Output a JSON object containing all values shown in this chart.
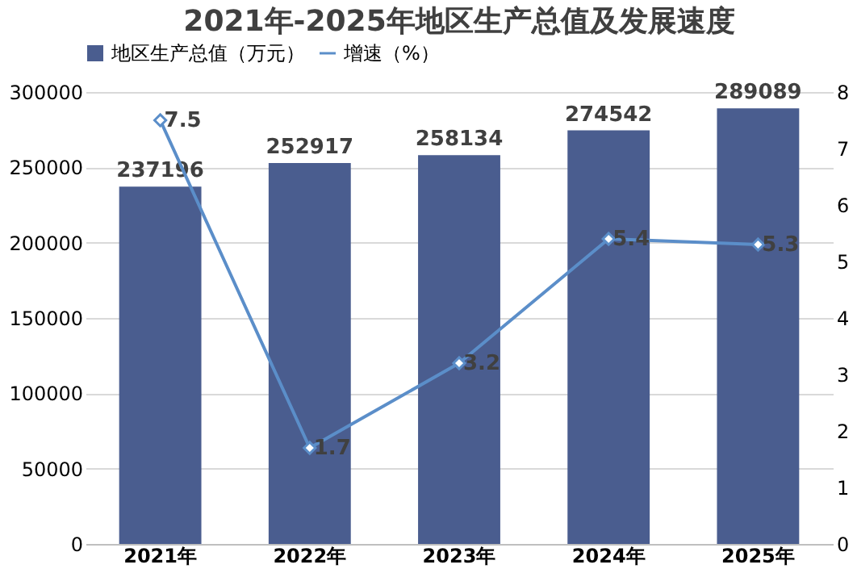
{
  "chart_data": {
    "type": "bar",
    "title": "2021年-2025年地区生产总值及发展速度",
    "categories": [
      "2021年",
      "2022年",
      "2023年",
      "2024年",
      "2025年"
    ],
    "series": [
      {
        "name": "地区生产总值（万元）",
        "color": "#4a5d8f",
        "values": [
          237196,
          252917,
          258134,
          274542,
          289089
        ]
      },
      {
        "name": "增速（%）",
        "type": "line",
        "axis": "y2",
        "color": "#5b8ec9",
        "marker": "diamond",
        "values": [
          7.5,
          1.7,
          3.2,
          5.4,
          5.3
        ]
      }
    ],
    "ylim": [
      0,
      300000
    ],
    "yticks": [
      0,
      50000,
      100000,
      150000,
      200000,
      250000,
      300000
    ],
    "y2lim": [
      0,
      8
    ],
    "y2ticks": [
      0,
      1,
      2,
      3,
      4,
      5,
      6,
      7,
      8
    ],
    "grid": "y",
    "legend": "top",
    "data_labels": true
  }
}
